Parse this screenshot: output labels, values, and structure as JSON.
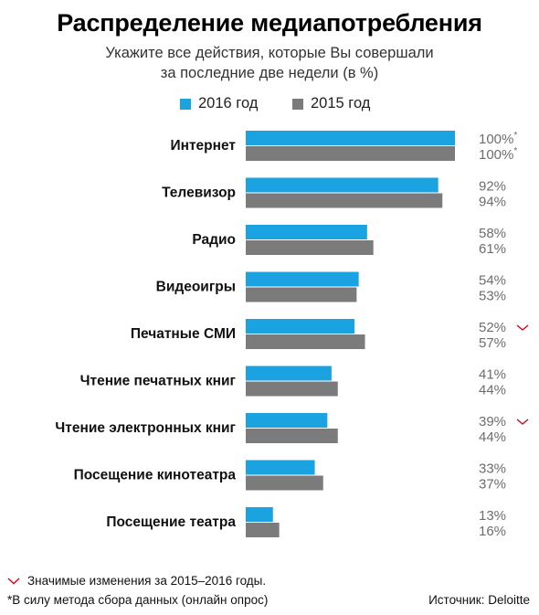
{
  "chart_data": {
    "type": "bar",
    "orientation": "horizontal",
    "title": "Распределение медиапотребления",
    "subtitle_lines": [
      "Укажите все действия, которые Вы совершали",
      "за последние две недели (в %)"
    ],
    "categories": [
      "Интернет",
      "Телевизор",
      "Радио",
      "Видеоигры",
      "Печатные СМИ",
      "Чтение печатных книг",
      "Чтение электронных книг",
      "Посещение кинотеатра",
      "Посещение театра"
    ],
    "series": [
      {
        "name": "2016 год",
        "color": "#1aa3e0",
        "values": [
          100,
          92,
          58,
          54,
          52,
          41,
          39,
          33,
          13
        ],
        "labels": [
          "100%",
          "92%",
          "58%",
          "54%",
          "52%",
          "41%",
          "39%",
          "33%",
          "13%"
        ]
      },
      {
        "name": "2015 год",
        "color": "#7b7b7b",
        "values": [
          100,
          94,
          61,
          53,
          57,
          44,
          44,
          37,
          16
        ],
        "labels": [
          "100%",
          "94%",
          "61%",
          "53%",
          "57%",
          "44%",
          "44%",
          "37%",
          "16%"
        ]
      }
    ],
    "asterisk_categories": [
      0
    ],
    "significant_change_categories": [
      4,
      6
    ],
    "xlim": [
      0,
      100
    ],
    "grid": false,
    "legend_position": "top"
  },
  "legend": {
    "item_2016": "2016 год",
    "item_2015": "2015 год"
  },
  "footnotes": {
    "significant": "Значимые изменения за 2015–2016 годы.",
    "method": "*В силу метода сбора данных (онлайн опрос)",
    "source": "Источник: Deloitte"
  },
  "colors": {
    "accent_2016": "#1aa3e0",
    "accent_2015": "#7b7b7b",
    "significant_mark": "#e0001b",
    "value_text": "#6d6d6d"
  },
  "icons": {
    "significant_mark": "red-check-mark-icon"
  }
}
